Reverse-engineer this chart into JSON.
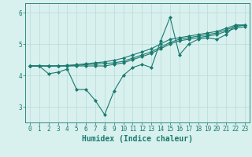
{
  "title": "",
  "xlabel": "Humidex (Indice chaleur)",
  "ylabel": "",
  "bg_color": "#d8f0ee",
  "line_color": "#1a7a6e",
  "grid_color": "#b8dbd8",
  "xlim": [
    -0.5,
    23.5
  ],
  "ylim": [
    2.5,
    6.3
  ],
  "yticks": [
    3,
    4,
    5,
    6
  ],
  "xticks": [
    0,
    1,
    2,
    3,
    4,
    5,
    6,
    7,
    8,
    9,
    10,
    11,
    12,
    13,
    14,
    15,
    16,
    17,
    18,
    19,
    20,
    21,
    22,
    23
  ],
  "series": [
    [
      4.3,
      4.3,
      4.05,
      4.1,
      4.2,
      3.55,
      3.55,
      3.2,
      2.75,
      3.5,
      4.0,
      4.25,
      4.35,
      4.25,
      5.1,
      5.85,
      4.65,
      5.0,
      5.15,
      5.2,
      5.15,
      5.3,
      5.6,
      5.6
    ],
    [
      4.3,
      4.3,
      4.3,
      4.3,
      4.3,
      4.3,
      4.3,
      4.3,
      4.3,
      4.35,
      4.4,
      4.5,
      4.6,
      4.7,
      4.85,
      5.0,
      5.1,
      5.15,
      5.2,
      5.25,
      5.3,
      5.4,
      5.5,
      5.55
    ],
    [
      4.3,
      4.3,
      4.3,
      4.3,
      4.3,
      4.32,
      4.34,
      4.36,
      4.38,
      4.4,
      4.45,
      4.55,
      4.65,
      4.75,
      4.9,
      5.05,
      5.15,
      5.2,
      5.25,
      5.3,
      5.35,
      5.45,
      5.55,
      5.6
    ],
    [
      4.3,
      4.3,
      4.3,
      4.3,
      4.32,
      4.34,
      4.37,
      4.4,
      4.43,
      4.48,
      4.55,
      4.65,
      4.75,
      4.85,
      5.0,
      5.15,
      5.2,
      5.25,
      5.3,
      5.35,
      5.4,
      5.5,
      5.6,
      5.6
    ]
  ],
  "marker": "D",
  "marker_size": 2,
  "linewidth": 0.8,
  "tick_fontsize": 5.5,
  "label_fontsize": 7
}
